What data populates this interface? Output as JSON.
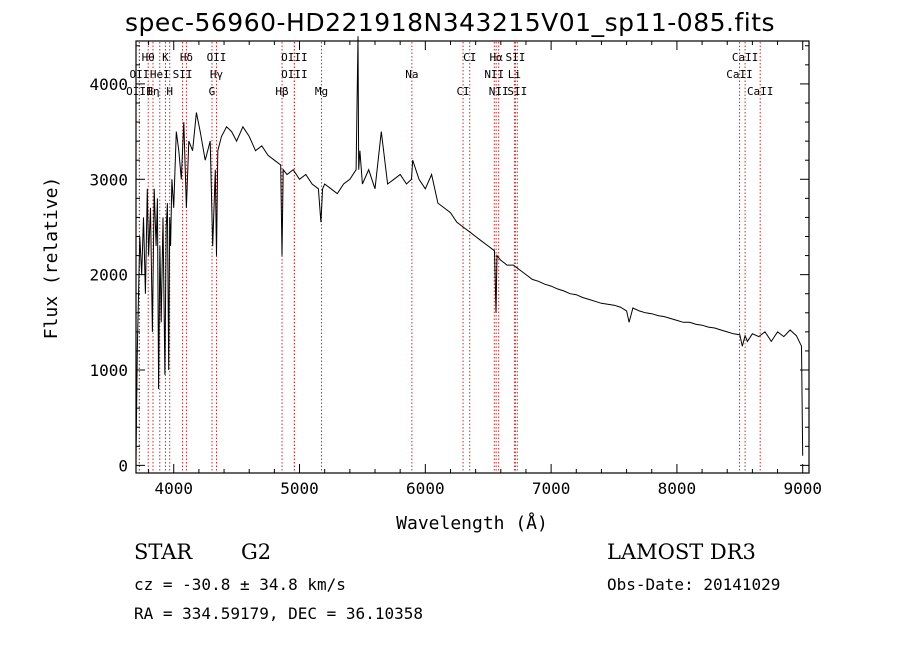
{
  "chart_data": {
    "type": "line",
    "title": "spec-56960-HD221918N343215V01_sp11-085.fits",
    "xlabel": "Wavelength (Å)",
    "ylabel": "Flux (relative)",
    "xlim": [
      3700,
      9050
    ],
    "ylim": [
      -80,
      4450
    ],
    "xticks": [
      4000,
      5000,
      6000,
      7000,
      8000,
      9000
    ],
    "xtick_labels": [
      "4000",
      "5000",
      "6000",
      "7000",
      "8000",
      "9000"
    ],
    "yticks": [
      0,
      1000,
      2000,
      3000,
      4000
    ],
    "ytick_labels": [
      "0",
      "1000",
      "2000",
      "3000",
      "4000"
    ],
    "series": [
      {
        "name": "flux",
        "x": [
          3700,
          3710,
          3730,
          3745,
          3760,
          3775,
          3790,
          3800,
          3815,
          3830,
          3845,
          3860,
          3870,
          3880,
          3890,
          3900,
          3915,
          3930,
          3940,
          3950,
          3960,
          3968,
          3975,
          3985,
          4000,
          4020,
          4040,
          4060,
          4080,
          4101,
          4120,
          4150,
          4180,
          4210,
          4250,
          4290,
          4310,
          4330,
          4340,
          4350,
          4380,
          4420,
          4460,
          4500,
          4550,
          4600,
          4650,
          4700,
          4750,
          4800,
          4850,
          4861,
          4870,
          4900,
          4950,
          5000,
          5050,
          5100,
          5150,
          5170,
          5183,
          5200,
          5250,
          5300,
          5350,
          5400,
          5450,
          5465,
          5470,
          5480,
          5500,
          5550,
          5600,
          5650,
          5700,
          5750,
          5800,
          5850,
          5890,
          5900,
          5950,
          6000,
          6050,
          6100,
          6150,
          6200,
          6250,
          6300,
          6350,
          6400,
          6450,
          6500,
          6550,
          6562,
          6570,
          6600,
          6650,
          6700,
          6750,
          6800,
          6850,
          6900,
          6950,
          7000,
          7050,
          7100,
          7150,
          7200,
          7250,
          7300,
          7350,
          7400,
          7450,
          7500,
          7550,
          7600,
          7620,
          7650,
          7700,
          7750,
          7800,
          7850,
          7900,
          7950,
          8000,
          8050,
          8100,
          8150,
          8200,
          8250,
          8300,
          8350,
          8400,
          8450,
          8500,
          8520,
          8542,
          8560,
          8600,
          8650,
          8700,
          8750,
          8800,
          8850,
          8900,
          8950,
          8990,
          9000
        ],
        "y": [
          40,
          1200,
          2400,
          2000,
          2600,
          1800,
          2900,
          2200,
          2700,
          1400,
          2900,
          2300,
          2800,
          800,
          2300,
          1500,
          2600,
          950,
          2500,
          2750,
          1000,
          2600,
          2300,
          3000,
          2700,
          3500,
          3300,
          3000,
          3600,
          2700,
          3400,
          3300,
          3700,
          3500,
          3200,
          3400,
          2300,
          3100,
          2200,
          3300,
          3450,
          3550,
          3500,
          3400,
          3550,
          3450,
          3300,
          3350,
          3250,
          3200,
          3150,
          2200,
          3100,
          3050,
          3100,
          3000,
          3050,
          2950,
          2900,
          2550,
          2900,
          2950,
          2900,
          2850,
          2950,
          3000,
          3100,
          4500,
          3100,
          3300,
          2950,
          3100,
          2900,
          3500,
          2950,
          3000,
          3050,
          2950,
          3000,
          3200,
          3000,
          2900,
          3050,
          2750,
          2700,
          2650,
          2550,
          2500,
          2450,
          2400,
          2350,
          2300,
          2250,
          1600,
          2200,
          2150,
          2100,
          2100,
          2050,
          2000,
          1950,
          1930,
          1900,
          1880,
          1850,
          1830,
          1800,
          1790,
          1760,
          1740,
          1720,
          1700,
          1690,
          1680,
          1660,
          1620,
          1500,
          1650,
          1620,
          1600,
          1590,
          1570,
          1560,
          1540,
          1520,
          1500,
          1500,
          1480,
          1470,
          1450,
          1440,
          1420,
          1400,
          1380,
          1370,
          1250,
          1360,
          1300,
          1380,
          1350,
          1400,
          1300,
          1400,
          1350,
          1420,
          1360,
          1250,
          100
        ]
      }
    ],
    "line_markers": [
      {
        "label": "Hθ",
        "x": 3797,
        "tier": 1
      },
      {
        "label": "K",
        "x": 3934,
        "tier": 1
      },
      {
        "label": "Hδ",
        "x": 4101,
        "tier": 1
      },
      {
        "label": "OII",
        "x": 4340,
        "tier": 1
      },
      {
        "label": "OIII",
        "x": 4959,
        "tier": 1
      },
      {
        "label": "CI",
        "x": 6353,
        "tier": 1
      },
      {
        "label": "Hα",
        "x": 6563,
        "tier": 1
      },
      {
        "label": "SII",
        "x": 6716,
        "tier": 1
      },
      {
        "label": "CaII",
        "x": 8542,
        "tier": 1
      },
      {
        "label": "OII",
        "x": 3727,
        "tier": 2
      },
      {
        "label": "HeI",
        "x": 3889,
        "tier": 2
      },
      {
        "label": "SII",
        "x": 4070,
        "tier": 2
      },
      {
        "label": "Hγ",
        "x": 4340,
        "tier": 2
      },
      {
        "label": "OIII",
        "x": 4959,
        "tier": 2
      },
      {
        "label": "Na",
        "x": 5893,
        "tier": 2
      },
      {
        "label": "NII",
        "x": 6548,
        "tier": 2
      },
      {
        "label": "Li",
        "x": 6708,
        "tier": 2
      },
      {
        "label": "CaII",
        "x": 8498,
        "tier": 2
      },
      {
        "label": "OIII",
        "x": 3727,
        "tier": 3
      },
      {
        "label": "Hη",
        "x": 3835,
        "tier": 3
      },
      {
        "label": "H",
        "x": 3968,
        "tier": 3
      },
      {
        "label": "G",
        "x": 4304,
        "tier": 3
      },
      {
        "label": "Hβ",
        "x": 4861,
        "tier": 3
      },
      {
        "label": "Mg",
        "x": 5175,
        "tier": 3
      },
      {
        "label": "CI",
        "x": 6300,
        "tier": 3
      },
      {
        "label": "NII",
        "x": 6583,
        "tier": 3
      },
      {
        "label": "SII",
        "x": 6731,
        "tier": 3
      },
      {
        "label": "CaII",
        "x": 8662,
        "tier": 3
      }
    ],
    "marker_color": "#cc2a2a"
  },
  "info": {
    "object_type": "STAR",
    "subclass": "G2",
    "survey": "LAMOST DR3",
    "redshift": "cz = -30.8 ± 34.8 km/s",
    "obs_date": "Obs-Date: 20141029",
    "coords": "RA = 334.59179, DEC =  36.10358"
  }
}
